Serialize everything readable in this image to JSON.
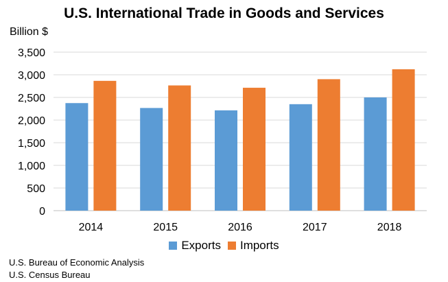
{
  "chart_data": {
    "type": "bar",
    "title": "U.S. International Trade in Goods and Services",
    "ylabel": "Billion $",
    "xlabel": "",
    "categories": [
      "2014",
      "2015",
      "2016",
      "2017",
      "2018"
    ],
    "series": [
      {
        "name": "Exports",
        "color": "#5b9bd5",
        "values": [
          2375,
          2267,
          2215,
          2351,
          2501
        ]
      },
      {
        "name": "Imports",
        "color": "#ed7d31",
        "values": [
          2866,
          2765,
          2714,
          2903,
          3122
        ]
      }
    ],
    "ylim": [
      0,
      3500
    ],
    "yticks": [
      "0",
      "500",
      "1,000",
      "1,500",
      "2,000",
      "2,500",
      "3,000",
      "3,500"
    ],
    "grid": true,
    "legend_position": "bottom"
  },
  "sources": [
    "U.S. Bureau of Economic Analysis",
    "U.S. Census Bureau"
  ]
}
